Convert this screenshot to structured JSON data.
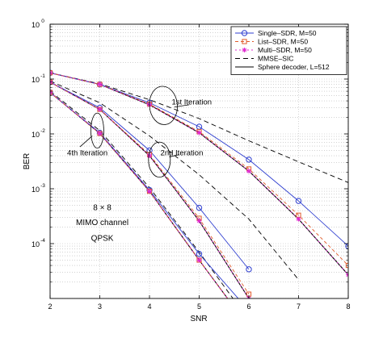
{
  "chart_data": {
    "type": "line",
    "xlabel": "SNR",
    "ylabel": "BER",
    "xlim": [
      2,
      8
    ],
    "ylim": [
      1e-05,
      1
    ],
    "yscale": "log",
    "grid": true,
    "legend_position": "top-right",
    "x_ticks": [
      "2",
      "3",
      "4",
      "5",
      "6",
      "7",
      "8"
    ],
    "y_ticks": [
      {
        "base": "10",
        "exp": "0",
        "value": 1
      },
      {
        "base": "10",
        "exp": "-1",
        "value": 0.1
      },
      {
        "base": "10",
        "exp": "-2",
        "value": 0.01
      },
      {
        "base": "10",
        "exp": "-3",
        "value": 0.001
      },
      {
        "base": "10",
        "exp": "-4",
        "value": 0.0001
      }
    ],
    "series": [
      {
        "name": "Single–SDR, M=50",
        "color": "#2f3fd0",
        "marker": "circle",
        "dash": "none",
        "curves": [
          {
            "x": [
              2,
              3,
              4,
              5,
              6,
              7,
              8
            ],
            "y": [
              0.13,
              0.08,
              0.037,
              0.0135,
              0.0034,
              0.0006,
              9e-05
            ]
          },
          {
            "x": [
              2,
              3,
              4,
              5,
              6
            ],
            "y": [
              0.088,
              0.03,
              0.005,
              0.00045,
              3.4e-05
            ]
          },
          {
            "x": [
              2,
              3,
              4,
              5,
              6
            ],
            "y": [
              0.057,
              0.0105,
              0.00095,
              6.5e-05,
              6e-06
            ]
          }
        ]
      },
      {
        "name": "List–SDR, M=50",
        "color": "#e05a2a",
        "marker": "square",
        "dash": "4,3",
        "curves": [
          {
            "x": [
              2,
              3,
              4,
              5,
              6,
              7,
              8
            ],
            "y": [
              0.13,
              0.08,
              0.035,
              0.011,
              0.0023,
              0.00033,
              4e-05
            ]
          },
          {
            "x": [
              2,
              3,
              4,
              5,
              6
            ],
            "y": [
              0.088,
              0.028,
              0.0042,
              0.00029,
              1.2e-05
            ]
          },
          {
            "x": [
              2,
              3,
              4,
              5,
              6
            ],
            "y": [
              0.057,
              0.0102,
              0.0009,
              5e-05,
              3e-06
            ]
          }
        ]
      },
      {
        "name": "Multi–SDR, M=50",
        "color": "#e02ad0",
        "marker": "star",
        "dash": "2,3",
        "curves": [
          {
            "x": [
              2,
              3,
              4,
              5,
              6,
              7,
              8
            ],
            "y": [
              0.13,
              0.08,
              0.034,
              0.0105,
              0.0021,
              0.00028,
              2.7e-05
            ]
          },
          {
            "x": [
              2,
              3,
              4,
              5,
              6
            ],
            "y": [
              0.088,
              0.028,
              0.004,
              0.00026,
              1e-05
            ]
          },
          {
            "x": [
              2,
              3,
              4,
              5,
              6
            ],
            "y": [
              0.057,
              0.0102,
              0.0009,
              5e-05,
              3e-06
            ]
          }
        ]
      },
      {
        "name": "MMSE–SIC",
        "color": "#000000",
        "marker": "none",
        "dash": "6,4",
        "curves": [
          {
            "x": [
              2,
              3,
              4,
              5,
              6,
              7,
              8
            ],
            "y": [
              0.13,
              0.082,
              0.042,
              0.019,
              0.0075,
              0.0031,
              0.0013
            ]
          },
          {
            "x": [
              2,
              3,
              4,
              5,
              6,
              7
            ],
            "y": [
              0.092,
              0.037,
              0.0092,
              0.0018,
              0.00028,
              2.2e-05
            ]
          },
          {
            "x": [
              2,
              3,
              4,
              5,
              6
            ],
            "y": [
              0.06,
              0.0115,
              0.00105,
              7e-05,
              4e-06
            ]
          }
        ]
      },
      {
        "name": "Sphere decoder, L=512",
        "color": "#000000",
        "marker": "none",
        "dash": "none",
        "curves": [
          {
            "x": [
              2,
              3,
              4,
              5,
              6,
              7,
              8
            ],
            "y": [
              0.13,
              0.08,
              0.034,
              0.0105,
              0.0021,
              0.00028,
              2.7e-05
            ]
          },
          {
            "x": [
              2,
              3,
              4,
              5,
              6
            ],
            "y": [
              0.088,
              0.028,
              0.004,
              0.00026,
              1e-05
            ]
          },
          {
            "x": [
              2,
              3,
              4,
              5,
              6
            ],
            "y": [
              0.057,
              0.0102,
              0.0009,
              5e-05,
              3e-06
            ]
          }
        ]
      }
    ],
    "annotations": [
      {
        "text": "1st Iteration",
        "x": 4.85,
        "y": 0.038,
        "anchor": "middle",
        "ex": 4.28,
        "ey": 0.033,
        "erx": 0.28,
        "ery": 0.35,
        "rot": -5,
        "lx1": 4.5,
        "ly1": 0.031,
        "lx2": 4.8,
        "ly2": 0.034
      },
      {
        "text": "2nd Iteration",
        "x": 4.65,
        "y": 0.0045,
        "anchor": "middle",
        "ex": 4.2,
        "ey": 0.0034,
        "erx": 0.22,
        "ery": 0.32,
        "rot": 0,
        "lx1": 4.4,
        "ly1": 0.0038,
        "lx2": 4.6,
        "ly2": 0.0042
      },
      {
        "text": "4th Iteration",
        "x": 2.75,
        "y": 0.0045,
        "anchor": "middle",
        "ex": 2.95,
        "ey": 0.0115,
        "erx": 0.13,
        "ery": 0.32,
        "rot": 0,
        "lx1": 2.85,
        "ly1": 0.0092,
        "lx2": 2.6,
        "ly2": 0.0058
      }
    ],
    "text_annotations": [
      {
        "text": "8 × 8",
        "x": 3.05,
        "y": 0.00047
      },
      {
        "text": "MIMO channel",
        "x": 3.05,
        "y": 0.00025
      },
      {
        "text": "QPSK",
        "x": 3.05,
        "y": 0.00013
      }
    ]
  }
}
